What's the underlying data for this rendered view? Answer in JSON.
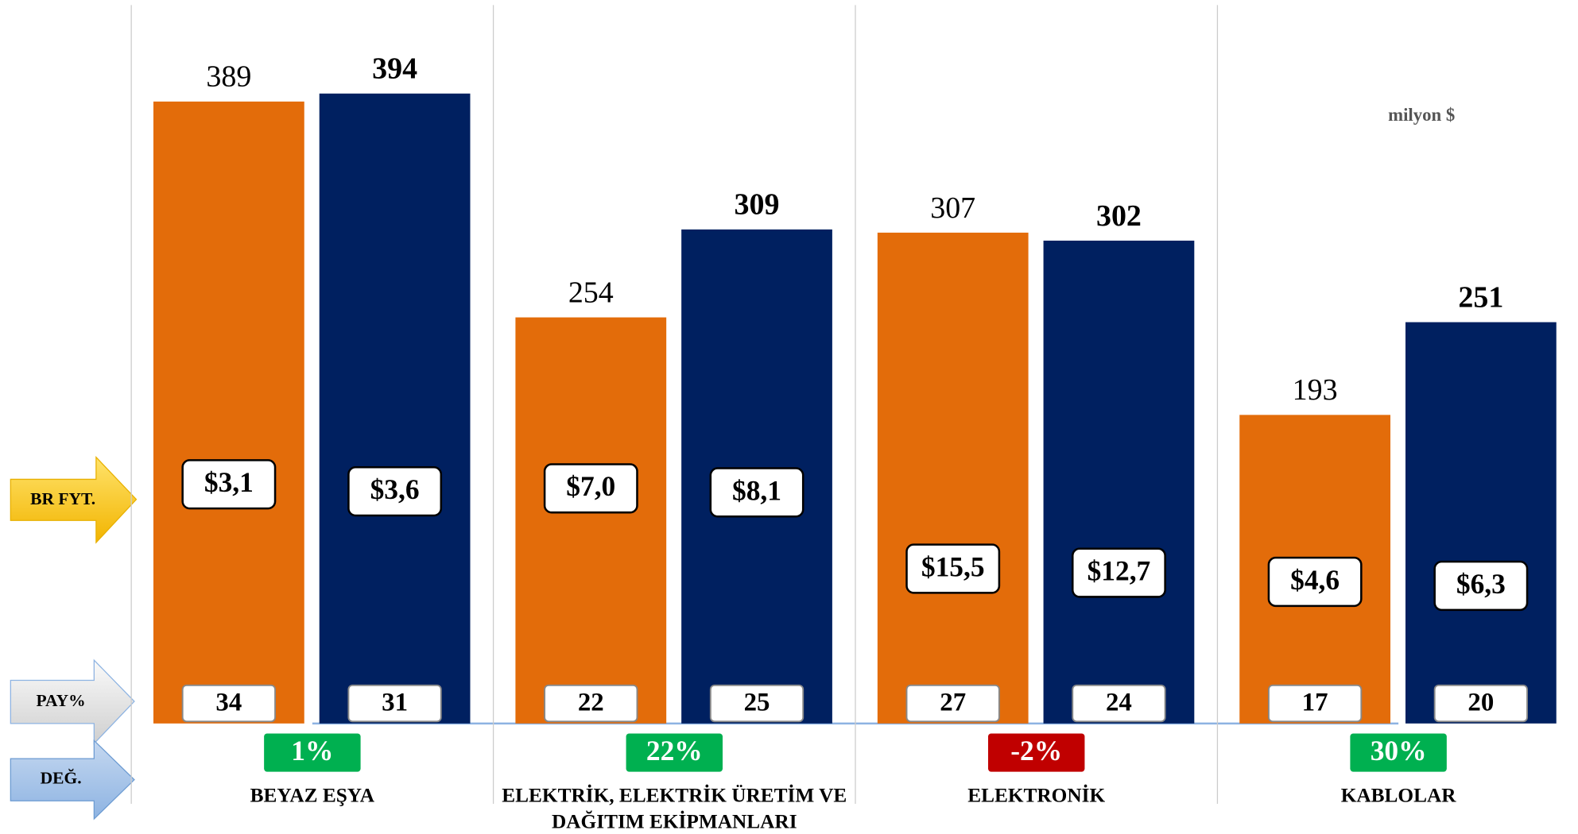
{
  "chart_data": {
    "type": "bar",
    "unit_note": "milyon $",
    "row_labels": {
      "unit_price": "BR FYT.",
      "share": "PAY%",
      "change": "DEĞ."
    },
    "categories": [
      "BEYAZ EŞYA",
      "ELEKTRİK, ELEKTRİK ÜRETİM VE DAĞITIM EKİPMANLARI",
      "ELEKTRONİK",
      "KABLOLAR"
    ],
    "ylim": [
      0,
      450
    ],
    "series": [
      {
        "color": "#e36c0a",
        "values": [
          389,
          254,
          307,
          193
        ],
        "unit_price": [
          3.1,
          7.0,
          15.5,
          4.6
        ],
        "unit_price_labels": [
          "$3,1",
          "$7,0",
          "$15,5",
          "$4,6"
        ],
        "share": [
          34,
          22,
          27,
          17
        ]
      },
      {
        "color": "#002060",
        "values": [
          394,
          309,
          302,
          251
        ],
        "unit_price": [
          3.6,
          8.1,
          12.7,
          6.3
        ],
        "unit_price_labels": [
          "$3,6",
          "$8,1",
          "$12,7",
          "$6,3"
        ],
        "share": [
          31,
          25,
          24,
          20
        ]
      }
    ],
    "change": {
      "values": [
        1,
        22,
        -2,
        30
      ],
      "value_labels": [
        "1%",
        "22%",
        "-2%",
        "30%"
      ],
      "positive_color": "#00b050",
      "negative_color": "#c00000"
    }
  }
}
